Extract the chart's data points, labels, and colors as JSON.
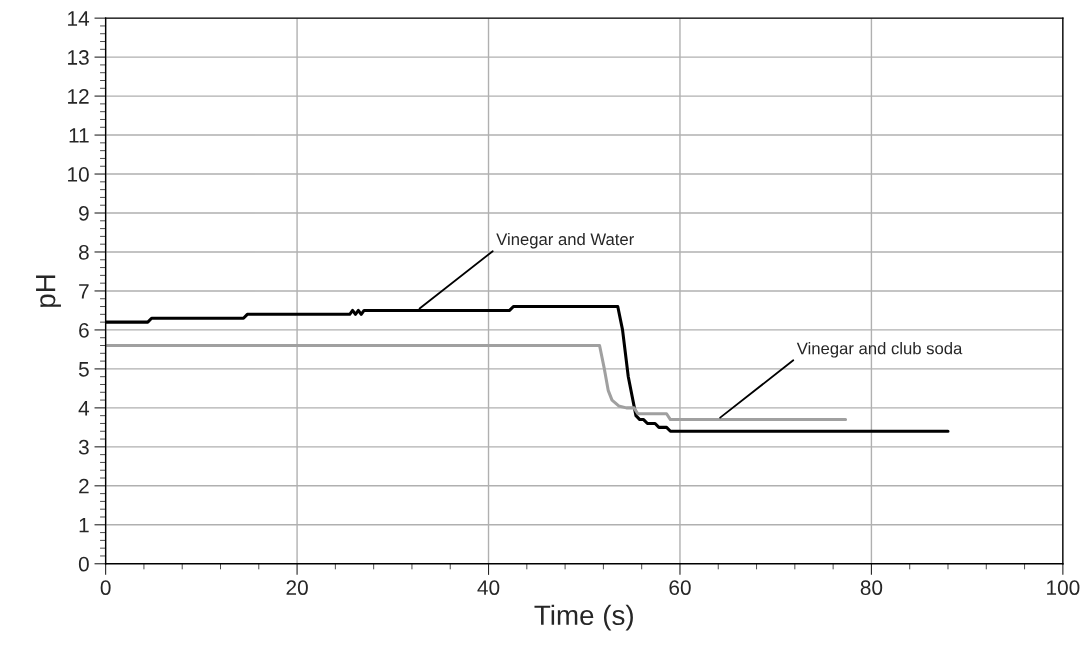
{
  "chart_data": {
    "type": "line",
    "xlabel": "Time (s)",
    "ylabel": "pH",
    "xlim": [
      0,
      100
    ],
    "xticks": [
      0,
      20,
      40,
      60,
      80,
      100
    ],
    "ylim": [
      0,
      14
    ],
    "yticks": [
      0,
      1,
      2,
      3,
      4,
      5,
      6,
      7,
      8,
      9,
      10,
      11,
      12,
      13,
      14
    ],
    "grid": true,
    "marker": "none",
    "line_style": "solid",
    "series": [
      {
        "color": "#000000",
        "x": [
          0,
          4.4,
          4.8,
          14.4,
          14.8,
          25.5,
          25.8,
          26.1,
          26.4,
          26.7,
          27.0,
          42.2,
          42.6,
          53.5,
          54.0,
          54.6,
          55.4,
          55.8,
          56.2,
          56.6,
          57.4,
          57.8,
          58.6,
          59.0,
          88.0
        ],
        "values": [
          6.2,
          6.2,
          6.3,
          6.3,
          6.4,
          6.4,
          6.5,
          6.4,
          6.5,
          6.4,
          6.5,
          6.5,
          6.6,
          6.6,
          6.0,
          4.8,
          3.8,
          3.7,
          3.7,
          3.6,
          3.6,
          3.5,
          3.5,
          3.4,
          3.4
        ]
      },
      {
        "color": "#a0a0a0",
        "x": [
          0,
          51.6,
          52.1,
          52.5,
          52.9,
          53.6,
          54.4,
          55.2,
          55.6,
          58.6,
          59.0,
          77.3
        ],
        "values": [
          5.6,
          5.6,
          5.0,
          4.45,
          4.2,
          4.05,
          4.0,
          4.0,
          3.85,
          3.85,
          3.7,
          3.7
        ]
      }
    ],
    "annotations": [
      {
        "text": "Vinegar and Water",
        "x": 32.8,
        "y": 6.55
      },
      {
        "text": "Vinegar and club soda",
        "x": 64.2,
        "y": 3.75
      }
    ]
  }
}
